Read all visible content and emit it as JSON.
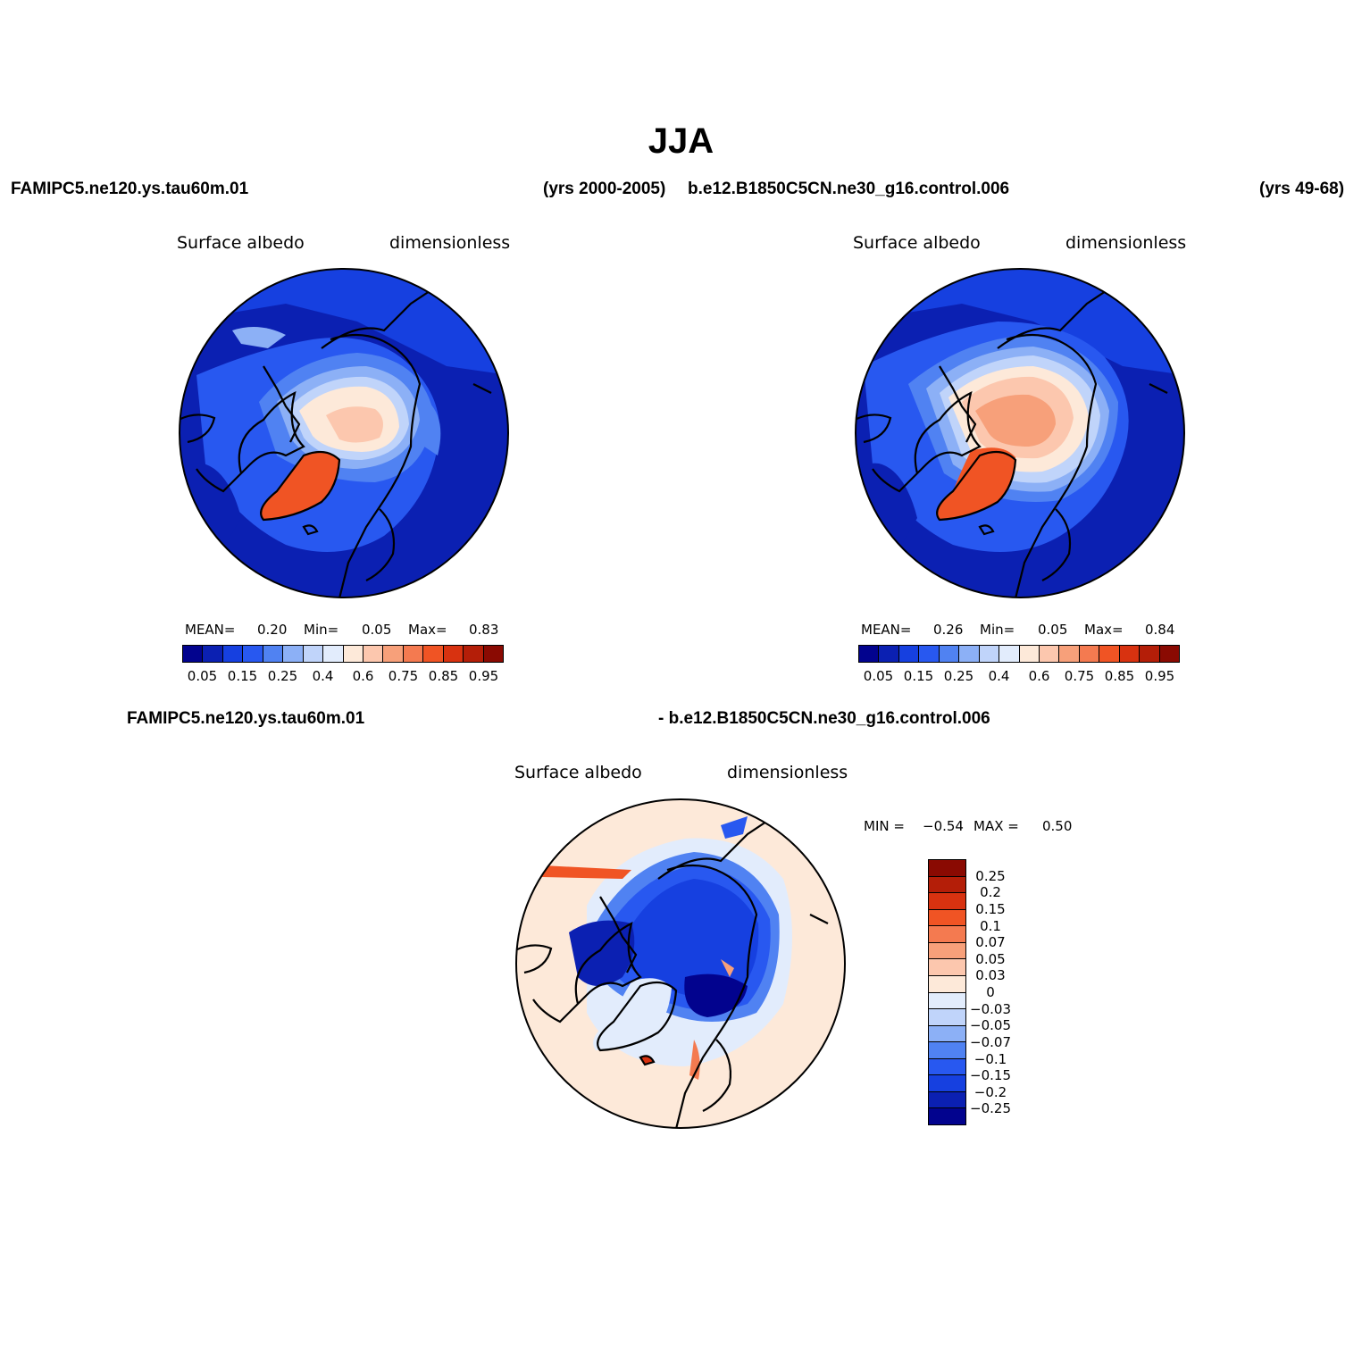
{
  "figure": {
    "title": "JJA",
    "left_case": "FAMIPC5.ne120.ys.tau60m.01",
    "left_years": "(yrs 2000-2005)",
    "right_case": "b.e12.B1850C5CN.ne30_g16.control.006",
    "right_years": "(yrs 49-68)",
    "diff_case_a": "FAMIPC5.ne120.ys.tau60m.01",
    "diff_case_b": "- b.e12.B1850C5CN.ne30_g16.control.006"
  },
  "panels": {
    "left": {
      "variable": "Surface albedo",
      "units": "dimensionless",
      "mean_label": "MEAN=",
      "mean": "0.20",
      "min_label": "Min=",
      "min": "0.05",
      "max_label": "Max=",
      "max": "0.83"
    },
    "right": {
      "variable": "Surface albedo",
      "units": "dimensionless",
      "mean_label": "MEAN=",
      "mean": "0.26",
      "min_label": "Min=",
      "min": "0.05",
      "max_label": "Max=",
      "max": "0.84"
    },
    "diff": {
      "variable": "Surface albedo",
      "units": "dimensionless",
      "min_label": "MIN =",
      "min": "−0.54",
      "max_label": "MAX =",
      "max": "0.50"
    }
  },
  "colorbar_abs": {
    "colors": [
      "#02038e",
      "#0b20b2",
      "#1640e0",
      "#2858f0",
      "#5082f2",
      "#8cb0f6",
      "#c0d4fa",
      "#e2ecfc",
      "#fde9d9",
      "#fcc7ae",
      "#f7a07a",
      "#f47a50",
      "#f05424",
      "#d83210",
      "#b41e08",
      "#8a0a02"
    ],
    "labels": [
      "0.05",
      "0.15",
      "0.25",
      "0.4",
      "0.6",
      "0.75",
      "0.85",
      "0.95"
    ]
  },
  "colorbar_diff": {
    "colors": [
      "#8a0a02",
      "#b41e08",
      "#d83210",
      "#f05424",
      "#f47a50",
      "#f7a07a",
      "#fcc7ae",
      "#fde9d9",
      "#e2ecfc",
      "#c0d4fa",
      "#8cb0f6",
      "#5082f2",
      "#2858f0",
      "#1640e0",
      "#0b20b2",
      "#02038e"
    ],
    "labels": [
      "0.25",
      "0.2",
      "0.15",
      "0.1",
      "0.07",
      "0.05",
      "0.03",
      "0",
      "−0.03",
      "−0.05",
      "−0.07",
      "−0.1",
      "−0.15",
      "−0.2",
      "−0.25"
    ]
  }
}
